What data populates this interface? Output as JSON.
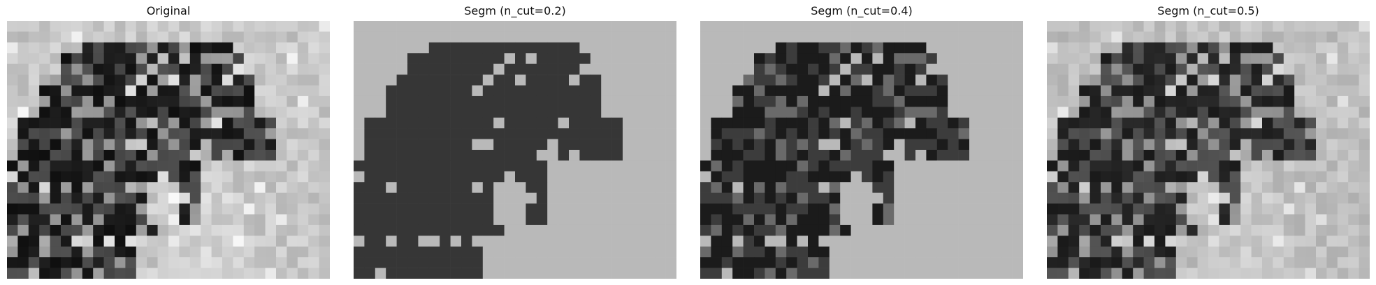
{
  "figure": {
    "panels": [
      {
        "id": "original",
        "title": "Original",
        "kind": "grayscale-photo"
      },
      {
        "id": "segm-02",
        "title": "Segm (n_cut=0.2)",
        "kind": "segmentation",
        "n_cut": 0.2,
        "region_colors": [
          "#363636",
          "#b9b9b9"
        ]
      },
      {
        "id": "segm-04",
        "title": "Segm (n_cut=0.4)",
        "kind": "segmentation",
        "n_cut": 0.4,
        "region_colors": [
          "#1b1b1b",
          "#3c3c3c",
          "#6a6a6a",
          "#b9b9b9"
        ]
      },
      {
        "id": "segm-05",
        "title": "Segm (n_cut=0.5)",
        "kind": "segmentation",
        "n_cut": 0.5
      }
    ],
    "grid": {
      "cols": 30,
      "rows": 24
    },
    "background_gray": "#c6c6c6"
  }
}
